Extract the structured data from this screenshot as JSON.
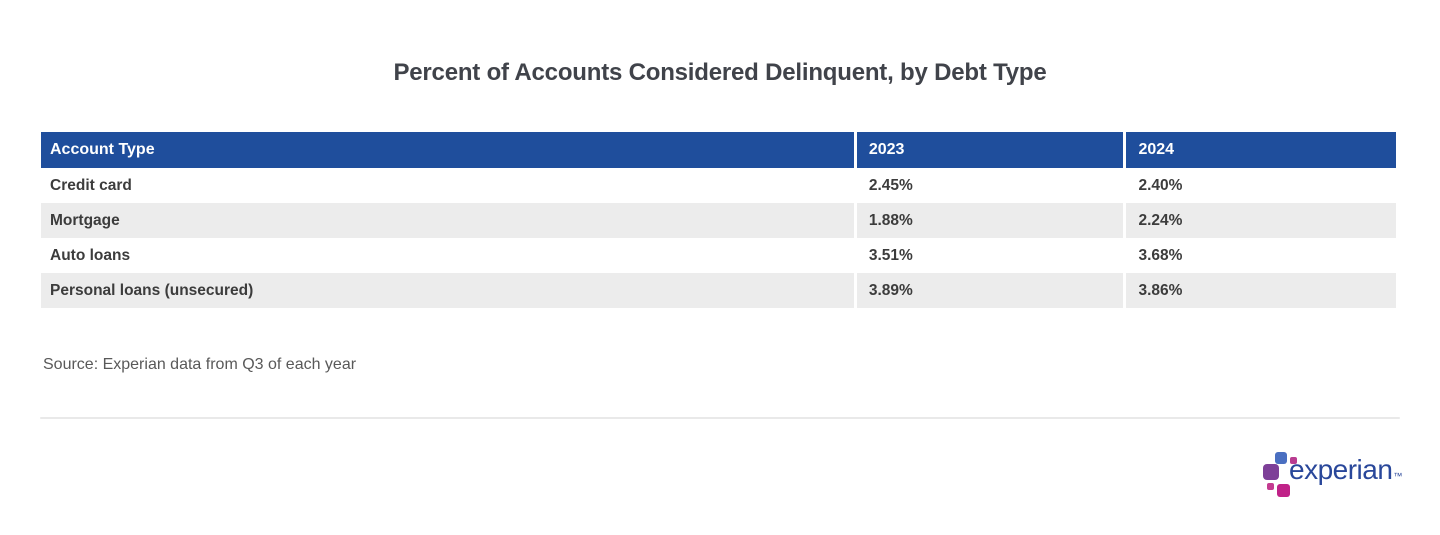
{
  "title": "Percent of Accounts Considered Delinquent, by Debt Type",
  "table": {
    "columns": [
      "Account Type",
      "2023",
      "2024"
    ],
    "rows": [
      {
        "label": "Credit card",
        "values": [
          "2.45%",
          "2.40%"
        ]
      },
      {
        "label": "Mortgage",
        "values": [
          "1.88%",
          "2.24%"
        ]
      },
      {
        "label": "Auto loans",
        "values": [
          "3.51%",
          "3.68%"
        ]
      },
      {
        "label": "Personal loans (unsecured)",
        "values": [
          "3.89%",
          "3.86%"
        ]
      }
    ]
  },
  "source": "Source: Experian data from Q3 of each year",
  "logo": {
    "wordmark": "experian",
    "trademark": "™"
  },
  "colors": {
    "header_bg": "#1f4e9c",
    "header_text": "#ffffff",
    "row_alt_bg": "#ececec",
    "body_text": "#3c3c3c",
    "title_text": "#40434a",
    "source_text": "#595959",
    "divider": "#e9e9e9",
    "logo_wordmark": "#29479a",
    "logo_blue": "#4a6fc1",
    "logo_purple": "#7d3f98",
    "logo_magenta": "#c02288",
    "logo_pink": "#c43b90"
  },
  "chart_data": {
    "type": "table",
    "title": "Percent of Accounts Considered Delinquent, by Debt Type",
    "categories": [
      "Credit card",
      "Mortgage",
      "Auto loans",
      "Personal loans (unsecured)"
    ],
    "series": [
      {
        "name": "2023",
        "values": [
          2.45,
          1.88,
          3.51,
          3.89
        ]
      },
      {
        "name": "2024",
        "values": [
          2.4,
          2.24,
          3.68,
          3.86
        ]
      }
    ],
    "unit": "%",
    "source": "Source: Experian data from Q3 of each year"
  }
}
